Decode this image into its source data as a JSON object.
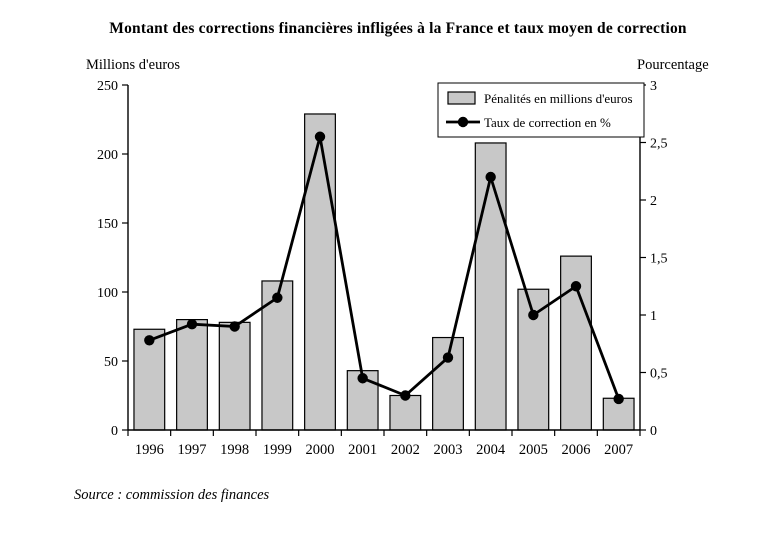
{
  "source": "Source : commission des finances",
  "chart_data": {
    "type": "bar+line",
    "title": "Montant des corrections financières infligées à la France et taux moyen de correction",
    "categories": [
      "1996",
      "1997",
      "1998",
      "1999",
      "2000",
      "2001",
      "2002",
      "2003",
      "2004",
      "2005",
      "2006",
      "2007"
    ],
    "series": [
      {
        "name": "Pénalités en millions d'euros",
        "type": "bar",
        "axis": "left",
        "values": [
          73,
          80,
          78,
          108,
          229,
          43,
          25,
          67,
          208,
          102,
          126,
          23
        ]
      },
      {
        "name": "Taux de correction en %",
        "type": "line",
        "axis": "right",
        "values": [
          0.78,
          0.92,
          0.9,
          1.15,
          2.55,
          0.45,
          0.3,
          0.63,
          2.2,
          1.0,
          1.25,
          0.27
        ]
      }
    ],
    "left_axis": {
      "label": "Millions d'euros",
      "min": 0,
      "max": 250,
      "step": 50,
      "ticks": [
        "0",
        "50",
        "100",
        "150",
        "200",
        "250"
      ]
    },
    "right_axis": {
      "label": "Pourcentage",
      "min": 0,
      "max": 3,
      "step": 0.5,
      "ticks": [
        "0",
        "0,5",
        "1",
        "1,5",
        "2",
        "2,5",
        "3"
      ]
    },
    "legend": {
      "position": "top-right"
    },
    "grid": false,
    "bar_color": "#c8c8c8",
    "line_color": "#000000"
  }
}
